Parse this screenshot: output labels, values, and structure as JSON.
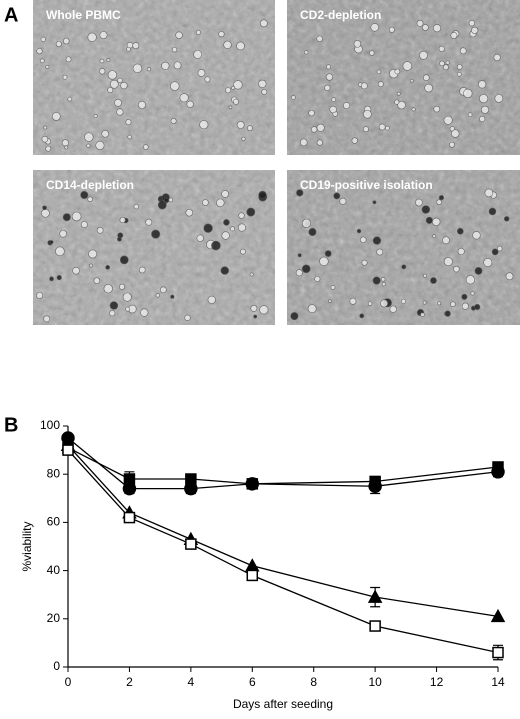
{
  "panel_a": {
    "label": "A",
    "images": [
      {
        "label": "Whole PBMC"
      },
      {
        "label": "CD2-depletion"
      },
      {
        "label": "CD14-depletion"
      },
      {
        "label": "CD19-positive isolation"
      }
    ]
  },
  "panel_b": {
    "label": "B"
  },
  "chart_data": {
    "type": "line",
    "x_label": "Days after seeding",
    "y_label": "%viability",
    "x": [
      0,
      2,
      4,
      6,
      10,
      14
    ],
    "series": [
      {
        "marker": "circle",
        "filled": true,
        "color": "#000000",
        "values": [
          95,
          74,
          74,
          76,
          75,
          81
        ],
        "errors": [
          null,
          2,
          2,
          null,
          3,
          2
        ]
      },
      {
        "marker": "square",
        "filled": true,
        "color": "#000000",
        "values": [
          91,
          78,
          78,
          76,
          77,
          83
        ],
        "errors": [
          null,
          3,
          2,
          null,
          2,
          null
        ]
      },
      {
        "marker": "triangle",
        "filled": true,
        "color": "#000000",
        "values": [
          92,
          64,
          53,
          42,
          29,
          21
        ],
        "errors": [
          null,
          null,
          null,
          null,
          4,
          null
        ]
      },
      {
        "marker": "square",
        "filled": false,
        "color": "#000000",
        "values": [
          90,
          62,
          51,
          38,
          17,
          6
        ],
        "errors": [
          null,
          null,
          null,
          null,
          null,
          3
        ]
      }
    ],
    "xlim": [
      0,
      14
    ],
    "xticks": [
      0,
      2,
      4,
      6,
      8,
      10,
      12,
      14
    ],
    "ylim": [
      0,
      100
    ],
    "yticks": [
      0,
      20,
      40,
      60,
      80,
      100
    ],
    "grid": false
  }
}
